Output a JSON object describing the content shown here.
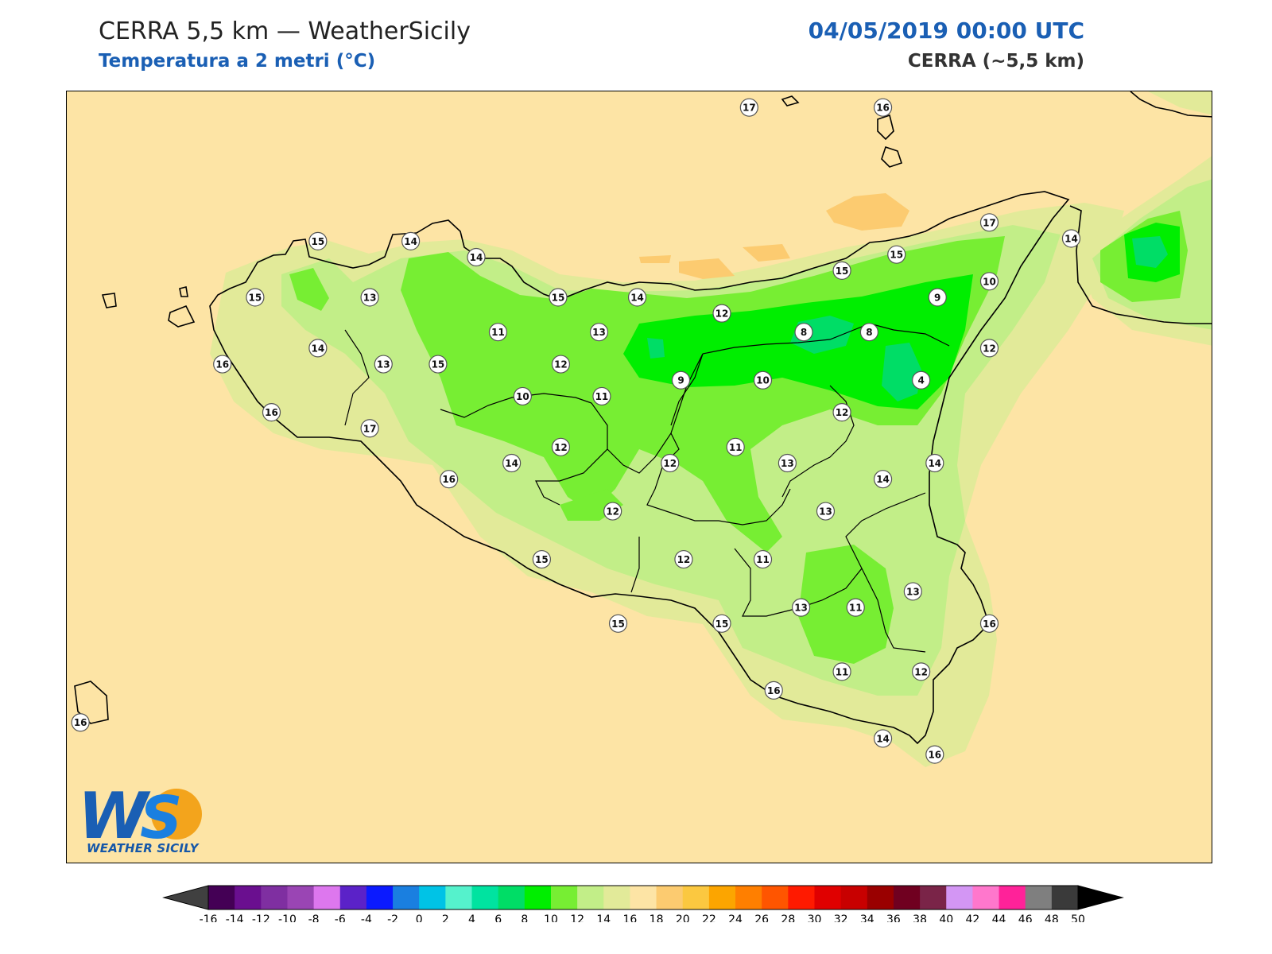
{
  "header": {
    "title": "CERRA 5,5 km — WeatherSicily",
    "subtitle": "Temperatura a 2 metri (°C)",
    "datetime": "04/05/2019 00:00 UTC",
    "model": "CERRA (~5,5 km)"
  },
  "logo": {
    "text": "WEATHER SICILY",
    "mark": "WS"
  },
  "colorbar": {
    "ticks": [
      "-16",
      "-14",
      "-12",
      "-10",
      "-8",
      "-6",
      "-4",
      "-2",
      "0",
      "2",
      "4",
      "6",
      "8",
      "10",
      "12",
      "14",
      "16",
      "18",
      "20",
      "22",
      "24",
      "26",
      "28",
      "30",
      "32",
      "34",
      "36",
      "38",
      "40",
      "42",
      "44",
      "46",
      "48",
      "50"
    ],
    "colors": [
      "#440055",
      "#6a0f8f",
      "#7f2fa1",
      "#9a45b4",
      "#dd77ee",
      "#5b22c8",
      "#0b1aff",
      "#1a7fe0",
      "#00c3e6",
      "#55f2cc",
      "#00e3a0",
      "#00dd66",
      "#00ee00",
      "#77ee33",
      "#c2ee88",
      "#e2ea99",
      "#fde4a5",
      "#fccb70",
      "#fbc840",
      "#fca500",
      "#ff7f00",
      "#ff5500",
      "#ff1a00",
      "#e00000",
      "#c80000",
      "#9a0000",
      "#700020",
      "#7a2448",
      "#d396f4",
      "#ff77cc",
      "#ff2299",
      "#7f7f7f",
      "#3a3a3a"
    ],
    "under_color": "#404040",
    "over_color": "#000000"
  },
  "stations": [
    {
      "v": "17",
      "lon": 14.4,
      "lat": 38.83
    },
    {
      "v": "16",
      "lon": 14.89,
      "lat": 38.83
    },
    {
      "v": "15",
      "lon": 12.82,
      "lat": 38.33
    },
    {
      "v": "14",
      "lon": 13.16,
      "lat": 38.33
    },
    {
      "v": "14",
      "lon": 13.4,
      "lat": 38.27
    },
    {
      "v": "17",
      "lon": 15.28,
      "lat": 38.4
    },
    {
      "v": "14",
      "lon": 15.58,
      "lat": 38.34
    },
    {
      "v": "15",
      "lon": 14.74,
      "lat": 38.22
    },
    {
      "v": "15",
      "lon": 14.94,
      "lat": 38.28
    },
    {
      "v": "15",
      "lon": 12.59,
      "lat": 38.12
    },
    {
      "v": "13",
      "lon": 13.01,
      "lat": 38.12
    },
    {
      "v": "15",
      "lon": 13.7,
      "lat": 38.12
    },
    {
      "v": "14",
      "lon": 13.99,
      "lat": 38.12
    },
    {
      "v": "12",
      "lon": 14.3,
      "lat": 38.06
    },
    {
      "v": "9",
      "lon": 15.09,
      "lat": 38.12
    },
    {
      "v": "10",
      "lon": 15.28,
      "lat": 38.18
    },
    {
      "v": "11",
      "lon": 13.48,
      "lat": 37.99
    },
    {
      "v": "13",
      "lon": 13.85,
      "lat": 37.99
    },
    {
      "v": "8",
      "lon": 14.6,
      "lat": 37.99
    },
    {
      "v": "8",
      "lon": 14.84,
      "lat": 37.99
    },
    {
      "v": "14",
      "lon": 12.82,
      "lat": 37.93
    },
    {
      "v": "16",
      "lon": 12.47,
      "lat": 37.87
    },
    {
      "v": "13",
      "lon": 13.06,
      "lat": 37.87
    },
    {
      "v": "15",
      "lon": 13.26,
      "lat": 37.87
    },
    {
      "v": "12",
      "lon": 13.71,
      "lat": 37.87
    },
    {
      "v": "12",
      "lon": 15.28,
      "lat": 37.93
    },
    {
      "v": "9",
      "lon": 14.15,
      "lat": 37.81
    },
    {
      "v": "10",
      "lon": 14.45,
      "lat": 37.81
    },
    {
      "v": "4",
      "lon": 15.03,
      "lat": 37.81
    },
    {
      "v": "10",
      "lon": 13.57,
      "lat": 37.75
    },
    {
      "v": "11",
      "lon": 13.86,
      "lat": 37.75
    },
    {
      "v": "16",
      "lon": 12.65,
      "lat": 37.69
    },
    {
      "v": "12",
      "lon": 14.74,
      "lat": 37.69
    },
    {
      "v": "17",
      "lon": 13.01,
      "lat": 37.63
    },
    {
      "v": "12",
      "lon": 13.71,
      "lat": 37.56
    },
    {
      "v": "11",
      "lon": 14.35,
      "lat": 37.56
    },
    {
      "v": "14",
      "lon": 13.53,
      "lat": 37.5
    },
    {
      "v": "12",
      "lon": 14.11,
      "lat": 37.5
    },
    {
      "v": "13",
      "lon": 14.54,
      "lat": 37.5
    },
    {
      "v": "14",
      "lon": 15.08,
      "lat": 37.5
    },
    {
      "v": "16",
      "lon": 13.3,
      "lat": 37.44
    },
    {
      "v": "14",
      "lon": 14.89,
      "lat": 37.44
    },
    {
      "v": "12",
      "lon": 13.9,
      "lat": 37.32
    },
    {
      "v": "13",
      "lon": 14.68,
      "lat": 37.32
    },
    {
      "v": "15",
      "lon": 13.64,
      "lat": 37.14
    },
    {
      "v": "12",
      "lon": 14.16,
      "lat": 37.14
    },
    {
      "v": "11",
      "lon": 14.45,
      "lat": 37.14
    },
    {
      "v": "13",
      "lon": 14.59,
      "lat": 36.96
    },
    {
      "v": "11",
      "lon": 14.79,
      "lat": 36.96
    },
    {
      "v": "13",
      "lon": 15.0,
      "lat": 37.02
    },
    {
      "v": "15",
      "lon": 13.92,
      "lat": 36.9
    },
    {
      "v": "15",
      "lon": 14.3,
      "lat": 36.9
    },
    {
      "v": "16",
      "lon": 15.28,
      "lat": 36.9
    },
    {
      "v": "11",
      "lon": 14.74,
      "lat": 36.72
    },
    {
      "v": "12",
      "lon": 15.03,
      "lat": 36.72
    },
    {
      "v": "16",
      "lon": 14.49,
      "lat": 36.65
    },
    {
      "v": "16",
      "lon": 11.95,
      "lat": 36.53
    },
    {
      "v": "14",
      "lon": 14.89,
      "lat": 36.47
    },
    {
      "v": "16",
      "lon": 15.08,
      "lat": 36.41
    }
  ]
}
